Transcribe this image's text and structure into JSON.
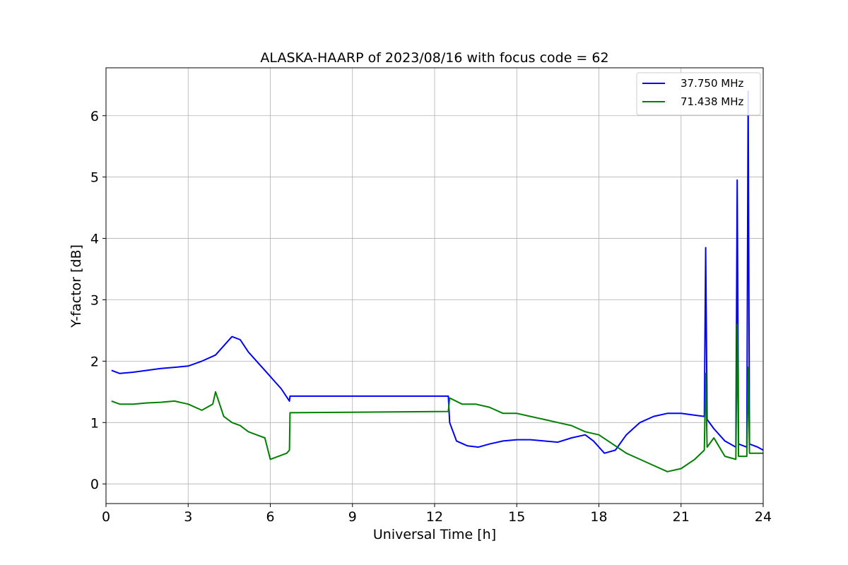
{
  "chart_data": {
    "type": "line",
    "title": "ALASKA-HAARP of 2023/08/16 with focus code = 62",
    "xlabel": "Universal Time [h]",
    "ylabel": "Y-factor [dB]",
    "xlim": [
      0,
      24
    ],
    "ylim": [
      -0.32,
      6.78
    ],
    "xticks": [
      0,
      3,
      6,
      9,
      12,
      15,
      18,
      21,
      24
    ],
    "yticks": [
      0,
      1,
      2,
      3,
      4,
      5,
      6
    ],
    "grid": true,
    "legend_position": "top-right",
    "series": [
      {
        "name": "37.750 MHz",
        "color": "#0000ff",
        "x": [
          0.2,
          0.5,
          1.0,
          1.5,
          2.0,
          2.5,
          3.0,
          3.5,
          4.0,
          4.3,
          4.6,
          4.9,
          5.2,
          5.5,
          5.8,
          6.1,
          6.4,
          6.7,
          6.72,
          12.5,
          12.55,
          12.8,
          13.2,
          13.6,
          14.0,
          14.5,
          15.0,
          15.5,
          16.0,
          16.5,
          17.0,
          17.5,
          17.8,
          18.2,
          18.6,
          19.0,
          19.5,
          20.0,
          20.5,
          21.0,
          21.5,
          21.85,
          21.9,
          21.95,
          22.2,
          22.6,
          23.0,
          23.05,
          23.1,
          23.4,
          23.45,
          23.5,
          23.8,
          24.0
        ],
        "y": [
          1.85,
          1.8,
          1.82,
          1.85,
          1.88,
          1.9,
          1.92,
          2.0,
          2.1,
          2.25,
          2.4,
          2.35,
          2.15,
          2.0,
          1.85,
          1.7,
          1.55,
          1.35,
          1.43,
          1.43,
          1.0,
          0.7,
          0.62,
          0.6,
          0.65,
          0.7,
          0.72,
          0.72,
          0.7,
          0.68,
          0.75,
          0.8,
          0.7,
          0.5,
          0.55,
          0.8,
          1.0,
          1.1,
          1.15,
          1.15,
          1.12,
          1.1,
          3.85,
          1.05,
          0.9,
          0.7,
          0.6,
          4.95,
          0.65,
          0.6,
          6.4,
          0.65,
          0.6,
          0.55
        ]
      },
      {
        "name": "71.438 MHz",
        "color": "#008000",
        "x": [
          0.2,
          0.5,
          1.0,
          1.5,
          2.0,
          2.5,
          3.0,
          3.5,
          3.9,
          4.0,
          4.3,
          4.6,
          4.9,
          5.2,
          5.5,
          5.8,
          6.0,
          6.3,
          6.6,
          6.7,
          6.72,
          12.5,
          12.55,
          13.0,
          13.5,
          14.0,
          14.5,
          15.0,
          15.5,
          16.0,
          16.5,
          17.0,
          17.5,
          18.0,
          18.5,
          19.0,
          19.5,
          20.0,
          20.5,
          21.0,
          21.5,
          21.85,
          21.9,
          21.95,
          22.2,
          22.6,
          23.0,
          23.05,
          23.1,
          23.4,
          23.45,
          23.5,
          23.8,
          24.0
        ],
        "y": [
          1.35,
          1.3,
          1.3,
          1.32,
          1.33,
          1.35,
          1.3,
          1.2,
          1.3,
          1.5,
          1.1,
          1.0,
          0.95,
          0.85,
          0.8,
          0.75,
          0.4,
          0.45,
          0.5,
          0.55,
          1.16,
          1.18,
          1.4,
          1.3,
          1.3,
          1.25,
          1.15,
          1.15,
          1.1,
          1.05,
          1.0,
          0.95,
          0.85,
          0.8,
          0.65,
          0.5,
          0.4,
          0.3,
          0.2,
          0.25,
          0.4,
          0.55,
          1.8,
          0.6,
          0.75,
          0.45,
          0.4,
          2.6,
          0.45,
          0.45,
          1.9,
          0.5,
          0.5,
          0.5
        ]
      }
    ]
  }
}
